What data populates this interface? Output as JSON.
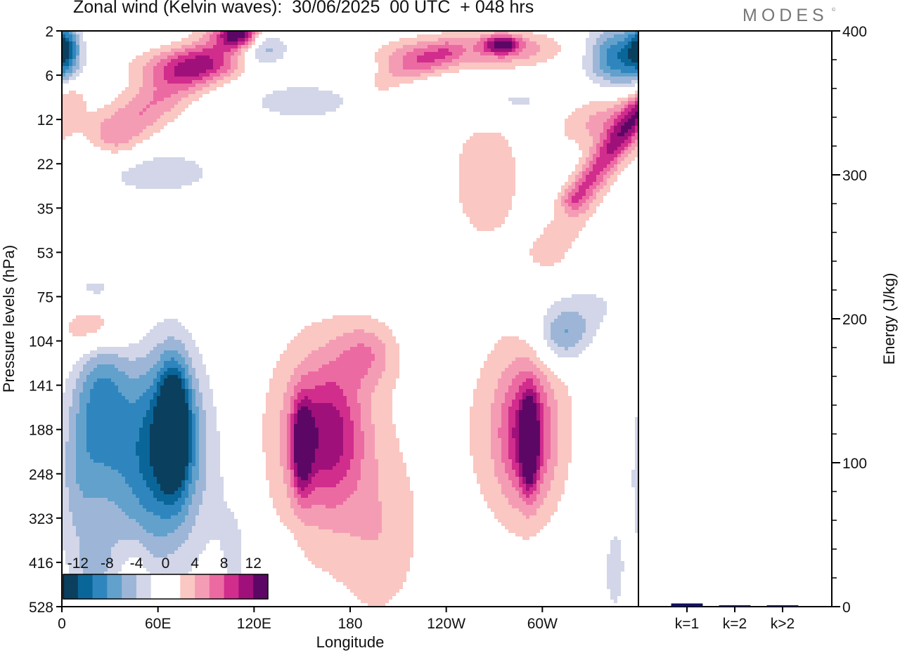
{
  "title": "Zonal wind (Kelvin waves):  30/06/2025  00 UTC  + 048 hrs",
  "brand": "MODES",
  "brand_mark": "©",
  "chart_data": [
    {
      "type": "heatmap",
      "title": "Zonal wind (Kelvin waves):  30/06/2025  00 UTC  + 048 hrs",
      "xlabel": "Longitude",
      "ylabel": "Pressure levels (hPa)",
      "x_ticks": [
        {
          "lon": 0,
          "label": "0"
        },
        {
          "lon": 60,
          "label": "60E"
        },
        {
          "lon": 120,
          "label": "120E"
        },
        {
          "lon": 180,
          "label": "180"
        },
        {
          "lon": 240,
          "label": "120W"
        },
        {
          "lon": 300,
          "label": "60W"
        }
      ],
      "xlim": [
        0,
        360
      ],
      "y_levels": [
        "2",
        "6",
        "12",
        "22",
        "35",
        "53",
        "75",
        "104",
        "141",
        "188",
        "248",
        "323",
        "416",
        "528"
      ],
      "colorbar": {
        "tick_labels": [
          "-12",
          "-8",
          "-4",
          "0",
          "4",
          "8",
          "12"
        ],
        "levels": [
          -14,
          -12,
          -10,
          -8,
          -6,
          -4,
          -2,
          0,
          2,
          4,
          6,
          8,
          10,
          12,
          14
        ],
        "colors": [
          "#0b3f5e",
          "#0a6699",
          "#2f86be",
          "#62a1cc",
          "#9db6d7",
          "#d2d6e8",
          "#ffffff",
          "#ffffff",
          "#fac7c2",
          "#f59cb5",
          "#ec6aa2",
          "#d12d8d",
          "#a0107a",
          "#5c0766"
        ]
      },
      "blobs": [
        {
          "lon": 64,
          "lev": 9.2,
          "rx": 26,
          "ry": 2.0,
          "value": -9.5
        },
        {
          "lon": 70,
          "lev": 8.9,
          "rx": 9,
          "ry": 1.3,
          "value": -13
        },
        {
          "lon": 25,
          "lev": 8.3,
          "rx": 16,
          "ry": 1.8,
          "value": -7
        },
        {
          "lon": 45,
          "lev": 10.6,
          "rx": 44,
          "ry": 2.5,
          "value": -4
        },
        {
          "lon": 10,
          "lev": 9.9,
          "rx": 12,
          "ry": 2.0,
          "value": -3
        },
        {
          "lon": 110,
          "lev": 11.8,
          "rx": 14,
          "ry": 2.0,
          "value": -2.5
        },
        {
          "lon": 140,
          "lev": 12.8,
          "rx": 8,
          "ry": 1.2,
          "value": -2.5
        },
        {
          "lon": 165,
          "lev": 9.1,
          "rx": 23,
          "ry": 1.6,
          "value": 9
        },
        {
          "lon": 150,
          "lev": 9.4,
          "rx": 6,
          "ry": 1.0,
          "value": 10
        },
        {
          "lon": 163,
          "lev": 9.6,
          "rx": 52,
          "ry": 3.2,
          "value": 3
        },
        {
          "lon": 200,
          "lev": 11.6,
          "rx": 24,
          "ry": 1.8,
          "value": 2.5
        },
        {
          "lon": 190,
          "lev": 7.3,
          "rx": 18,
          "ry": 0.7,
          "value": 4.5
        },
        {
          "lon": 290,
          "lev": 9.1,
          "rx": 17,
          "ry": 1.5,
          "value": 8.5
        },
        {
          "lon": 292,
          "lev": 9.3,
          "rx": 5,
          "ry": 1.0,
          "value": 11
        },
        {
          "lon": 285,
          "lev": 9.0,
          "rx": 42,
          "ry": 2.6,
          "value": 3
        },
        {
          "lon": 335,
          "lev": 7.2,
          "rx": 32,
          "ry": 0.8,
          "value": 3
        },
        {
          "lon": 314,
          "lev": 6.9,
          "rx": 18,
          "ry": 0.7,
          "value": -7
        },
        {
          "lon": 340,
          "lev": 6.6,
          "rx": 35,
          "ry": 1.1,
          "value": -3
        },
        {
          "lon": 20,
          "lev": 6.6,
          "rx": 22,
          "ry": 0.7,
          "value": 7
        },
        {
          "lon": 20,
          "lev": 6.0,
          "rx": 20,
          "ry": 0.5,
          "value": -3
        },
        {
          "lon": 265,
          "lev": 3.3,
          "rx": 28,
          "ry": 1.8,
          "value": 3
        },
        {
          "lon": 340,
          "lev": 2.0,
          "rx": 30,
          "ry": 0.7,
          "value": 5
        },
        {
          "lon": 80,
          "lev": 0.8,
          "rx": 34,
          "ry": 0.4,
          "value": 6
        },
        {
          "lon": 110,
          "lev": 0.1,
          "rx": 12,
          "ry": 0.3,
          "value": 9
        },
        {
          "lon": 220,
          "lev": 0.6,
          "rx": 24,
          "ry": 0.4,
          "value": 5
        },
        {
          "lon": 272,
          "lev": 0.4,
          "rx": 40,
          "ry": 0.4,
          "value": 6
        },
        {
          "lon": 275,
          "lev": 0.3,
          "rx": 10,
          "ry": 0.2,
          "value": 9
        },
        {
          "lon": 348,
          "lev": 0.6,
          "rx": 20,
          "ry": 0.7,
          "value": -10
        },
        {
          "lon": 2,
          "lev": 0.4,
          "rx": 8,
          "ry": 0.5,
          "value": -9
        },
        {
          "lon": 125,
          "lev": 0.4,
          "rx": 15,
          "ry": 0.4,
          "value": -6
        },
        {
          "lon": 60,
          "lev": 3.2,
          "rx": 45,
          "ry": 0.6,
          "value": -3
        },
        {
          "lon": 150,
          "lev": 1.6,
          "rx": 40,
          "ry": 0.5,
          "value": -3
        },
        {
          "lon": 280,
          "lev": 1.6,
          "rx": 45,
          "ry": 0.4,
          "value": -3
        },
        {
          "lon": 5,
          "lev": 1.5,
          "rx": 10,
          "ry": 0.3,
          "value": 3
        },
        {
          "lon": 20,
          "lev": 12.0,
          "rx": 10,
          "ry": 0.5,
          "value": -3
        },
        {
          "lon": 45,
          "lev": 12.5,
          "rx": 9,
          "ry": 1.0,
          "value": 3
        },
        {
          "lon": 60,
          "lev": 13.0,
          "rx": 12,
          "ry": 0.6,
          "value": 3
        },
        {
          "lon": 345,
          "lev": 12.2,
          "rx": 6,
          "ry": 1.0,
          "value": -3
        }
      ],
      "streaks": [
        {
          "lon0": 35,
          "lev0": 2.3,
          "lon1": 110,
          "lev1": 0.0,
          "width": 0.55,
          "value": 6
        },
        {
          "lon0": 305,
          "lev0": 5.0,
          "lon1": 360,
          "lev1": 2.0,
          "width": 0.45,
          "value": 3
        },
        {
          "lon0": 320,
          "lev0": 3.8,
          "lon1": 360,
          "lev1": 1.8,
          "width": 0.28,
          "value": 6
        },
        {
          "lon0": 200,
          "lev0": 1.2,
          "lon1": 240,
          "lev1": 0.5,
          "width": 0.3,
          "value": 3
        }
      ],
      "k_wave_energy": {
        "type": "bar",
        "categories": [
          "k=1",
          "k=2",
          "k>2"
        ],
        "values": [
          2,
          0.6,
          0.4
        ],
        "ylabel": "Energy (J/kg)",
        "ylim": [
          0,
          400
        ],
        "y_ticks": [
          0,
          100,
          200,
          300,
          400
        ],
        "bar_color": "#10107a"
      }
    }
  ]
}
